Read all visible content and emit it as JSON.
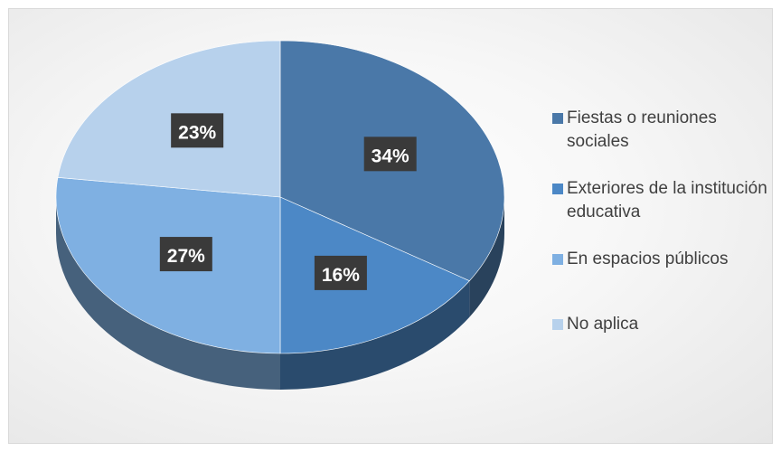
{
  "chart_data": {
    "type": "pie",
    "title": "",
    "slices": [
      {
        "label": "Fiestas o reuniones sociales",
        "value": 34,
        "display": "34%",
        "color": "#4a78a8"
      },
      {
        "label": "Exteriores de la institución educativa",
        "value": 16,
        "display": "16%",
        "color": "#4c88c6"
      },
      {
        "label": "En espacios públicos",
        "value": 27,
        "display": "27%",
        "color": "#7fb0e2"
      },
      {
        "label": "No aplica",
        "value": 23,
        "display": "23%",
        "color": "#b7d1ec"
      }
    ],
    "legend_position": "right",
    "style": "3d"
  }
}
